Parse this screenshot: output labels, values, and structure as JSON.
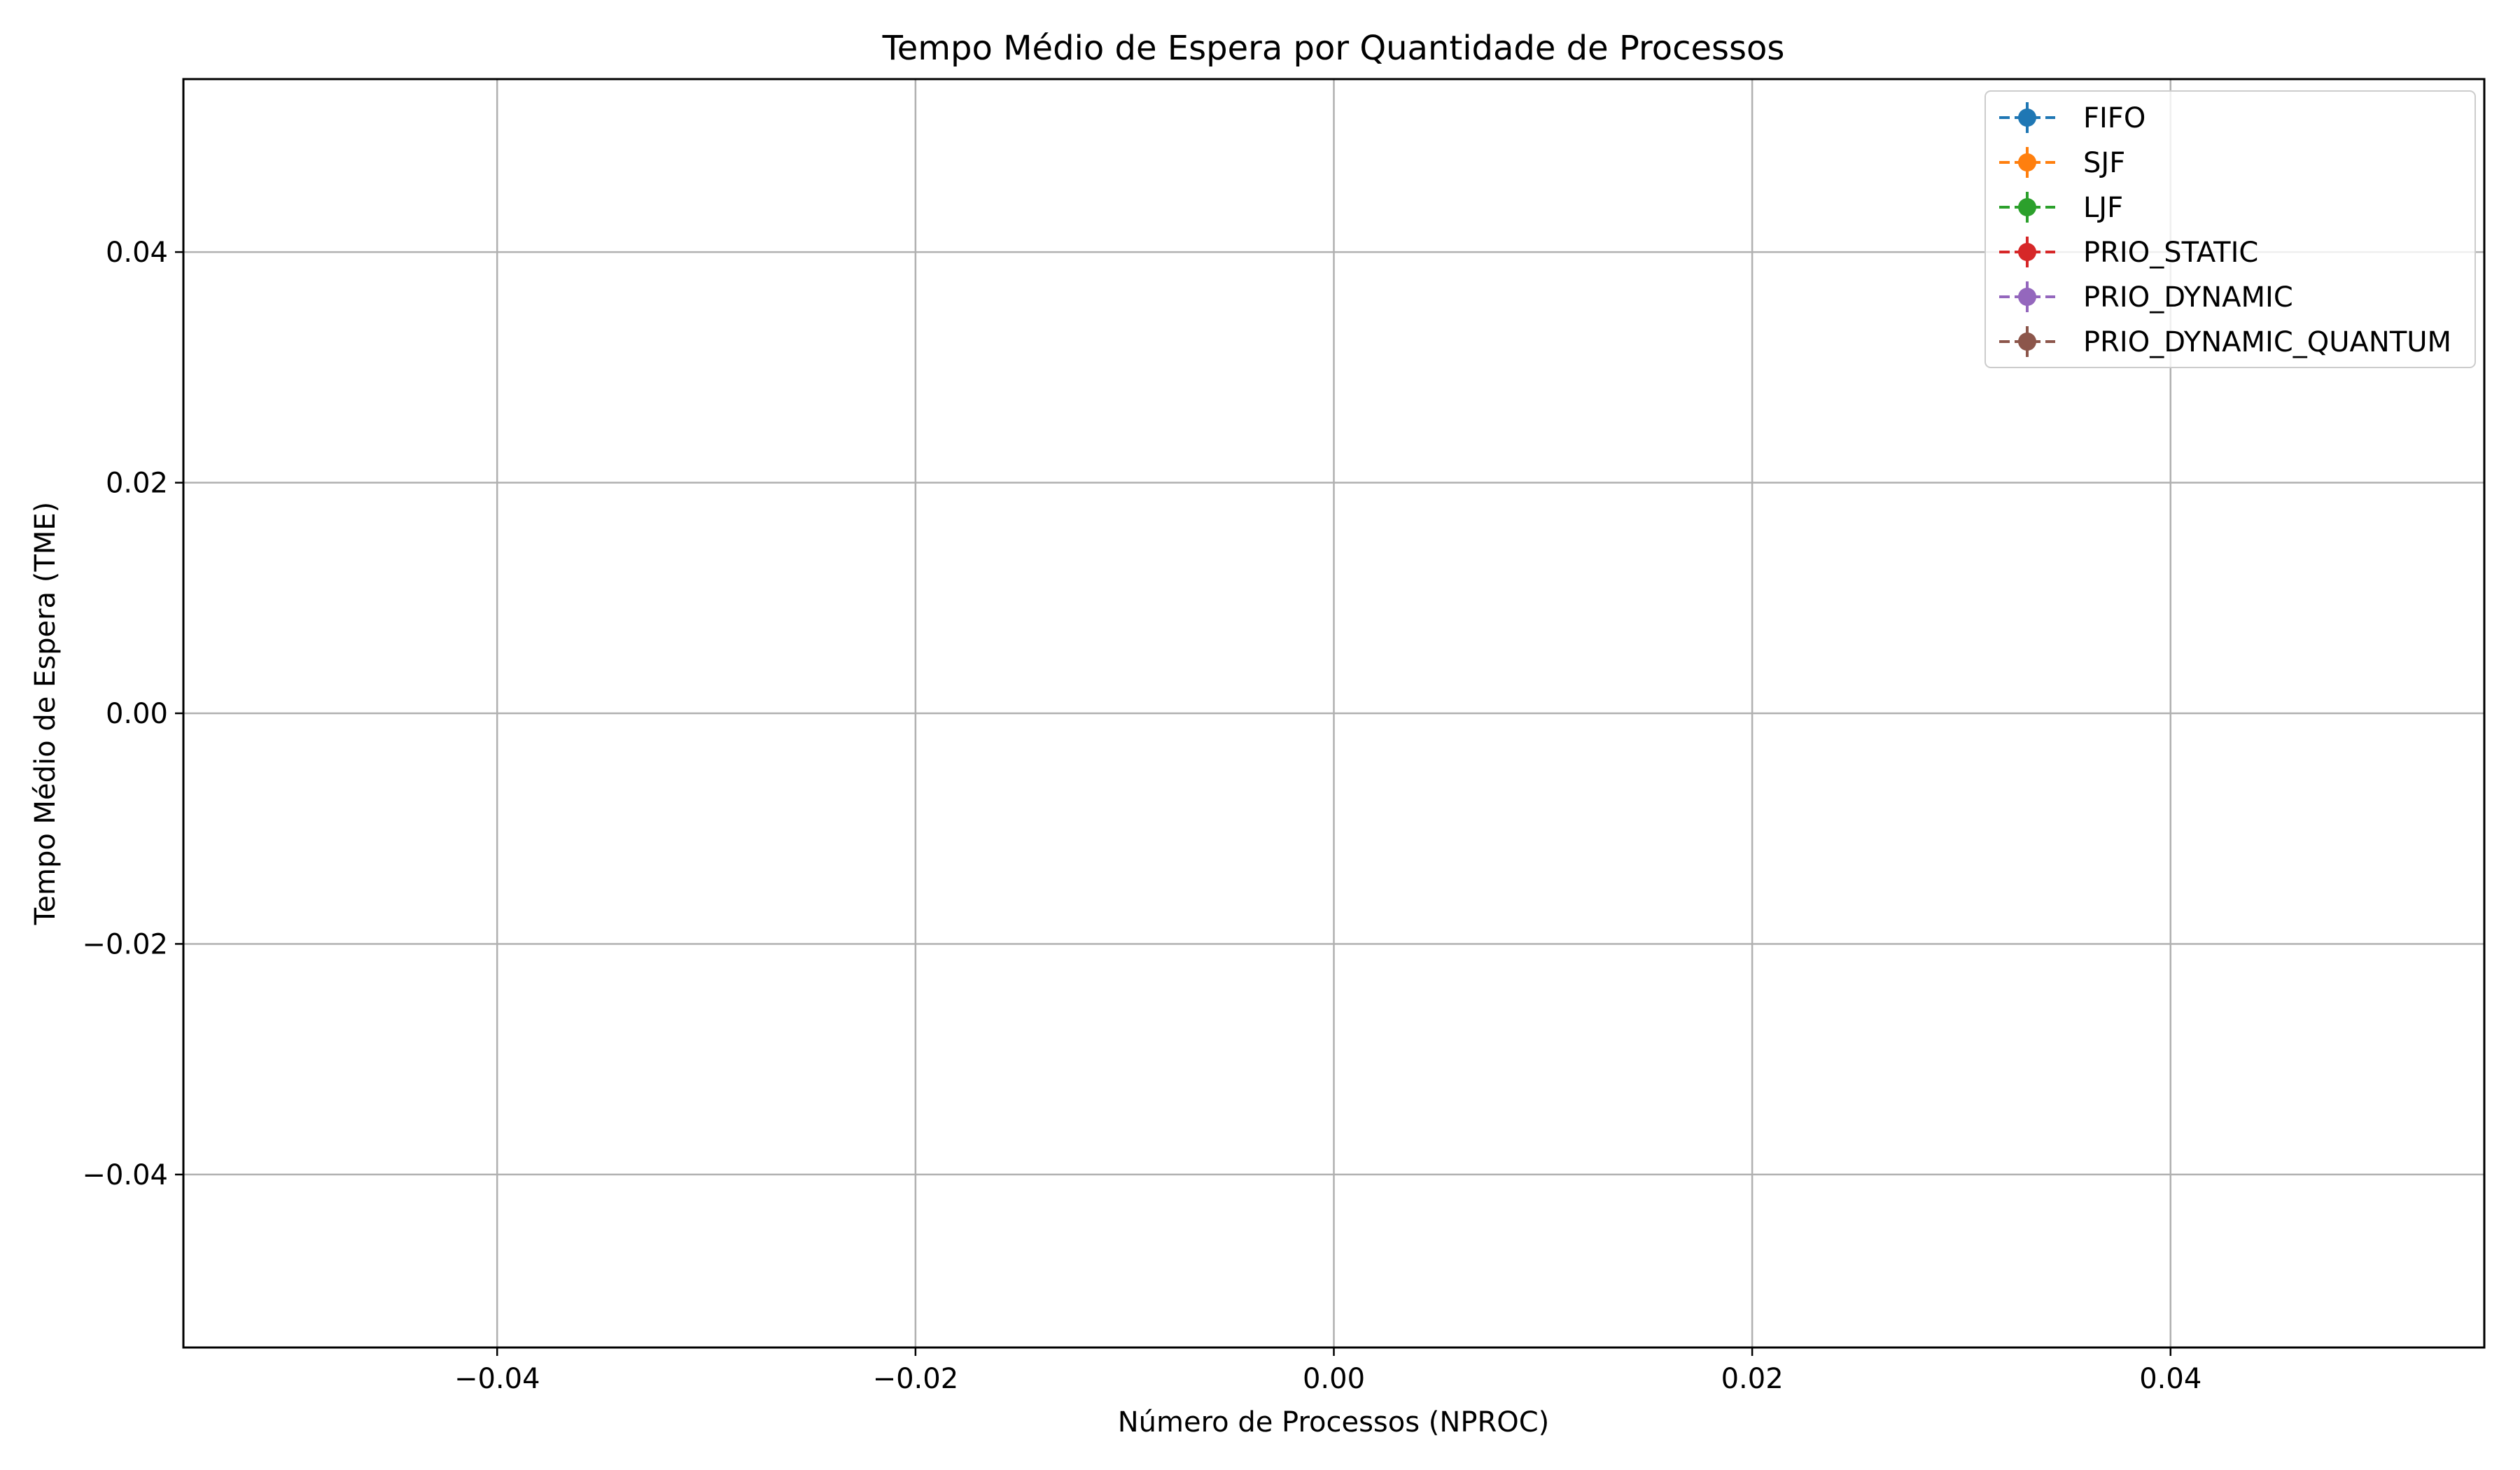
{
  "chart_data": {
    "type": "line",
    "title": "Tempo Médio de Espera por Quantidade de Processos",
    "xlabel": "Número de Processos (NPROC)",
    "ylabel": "Tempo Médio de Espera (TME)",
    "xlim": [
      -0.055,
      0.055
    ],
    "ylim": [
      -0.055,
      0.055
    ],
    "x_ticks": [
      -0.04,
      -0.02,
      0.0,
      0.02,
      0.04
    ],
    "y_ticks": [
      -0.04,
      -0.02,
      0.0,
      0.02,
      0.04
    ],
    "x_tick_labels": [
      "−0.04",
      "−0.02",
      "0.00",
      "0.02",
      "0.04"
    ],
    "y_tick_labels": [
      "−0.04",
      "−0.02",
      "0.00",
      "0.02",
      "0.04"
    ],
    "grid": true,
    "legend_position": "top-right",
    "line_style": "dashed",
    "marker": "circle",
    "error_bars": true,
    "series": [
      {
        "name": "FIFO",
        "color": "#1f77b4",
        "x": [],
        "y": []
      },
      {
        "name": "SJF",
        "color": "#ff7f0e",
        "x": [],
        "y": []
      },
      {
        "name": "LJF",
        "color": "#2ca02c",
        "x": [],
        "y": []
      },
      {
        "name": "PRIO_STATIC",
        "color": "#d62728",
        "x": [],
        "y": []
      },
      {
        "name": "PRIO_DYNAMIC",
        "color": "#9467bd",
        "x": [],
        "y": []
      },
      {
        "name": "PRIO_DYNAMIC_QUANTUM",
        "color": "#8c564b",
        "x": [],
        "y": []
      }
    ]
  }
}
